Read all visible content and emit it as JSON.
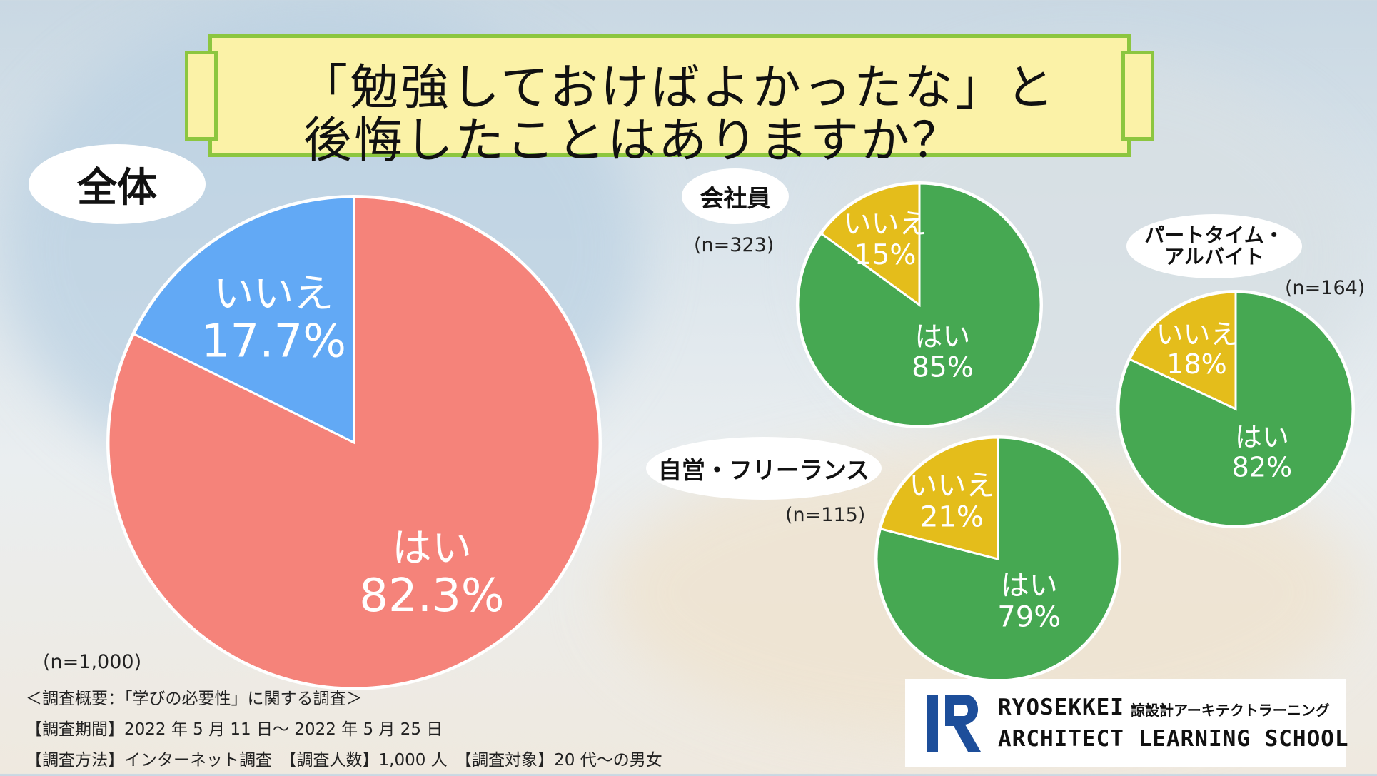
{
  "title": {
    "line1": "「勉強しておけばよかったな」と",
    "line2": "後悔したことはありますか？"
  },
  "colors": {
    "yes_overall": "#f5837a",
    "no_overall": "#62a9f5",
    "yes_group": "#46a852",
    "no_group": "#e4bd1b",
    "frame": "#8cc63f",
    "title_bg": "#fbf2a7"
  },
  "chart_data": [
    {
      "type": "pie",
      "group_label": "全体",
      "n_label": "(n=1,000)",
      "slices": [
        {
          "label": "はい",
          "value": 82.3,
          "value_label": "82.3%"
        },
        {
          "label": "いいえ",
          "value": 17.7,
          "value_label": "17.7%"
        }
      ]
    },
    {
      "type": "pie",
      "group_label": "会社員",
      "n_label": "(n=323)",
      "slices": [
        {
          "label": "はい",
          "value": 85,
          "value_label": "85%"
        },
        {
          "label": "いいえ",
          "value": 15,
          "value_label": "15%"
        }
      ]
    },
    {
      "type": "pie",
      "group_label": "パートタイム・アルバイト",
      "group_label_lines": [
        "パートタイム・",
        "アルバイト"
      ],
      "n_label": "(n=164)",
      "slices": [
        {
          "label": "はい",
          "value": 82,
          "value_label": "82%"
        },
        {
          "label": "いいえ",
          "value": 18,
          "value_label": "18%"
        }
      ]
    },
    {
      "type": "pie",
      "group_label": "自営・フリーランス",
      "n_label": "(n=115)",
      "slices": [
        {
          "label": "はい",
          "value": 79,
          "value_label": "79%"
        },
        {
          "label": "いいえ",
          "value": 21,
          "value_label": "21%"
        }
      ]
    }
  ],
  "footnotes": {
    "summary": "＜調査概要：「学びの必要性」に関する調査＞",
    "period": "【調査期間】2022 年 5 月 11 日〜 2022 年 5 月 25 日",
    "method": "【調査方法】インターネット調査　【調査人数】1,000 人　【調査対象】20 代〜の男女"
  },
  "logo": {
    "mark": "logo-icon",
    "en_line1": "RYOSEKKEI",
    "en_line2": "ARCHITECT LEARNING SCHOOL",
    "ja": "諒設計アーキテクトラーニング"
  }
}
